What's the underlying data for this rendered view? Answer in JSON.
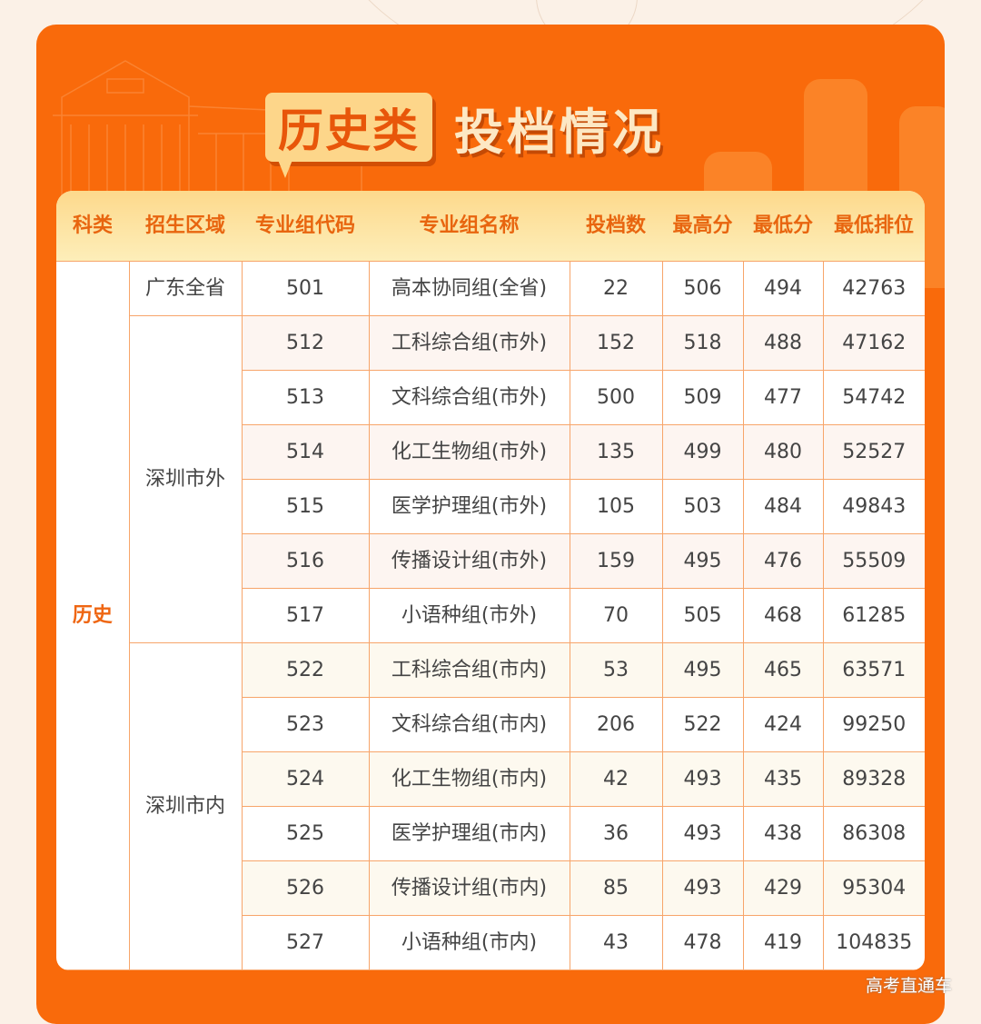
{
  "title": {
    "badge": "历史类",
    "main": "投档情况"
  },
  "headers": [
    "科类",
    "招生区域",
    "专业组代码",
    "专业组名称",
    "投档数",
    "最高分",
    "最低分",
    "最低排位"
  ],
  "category": "历史",
  "regions": [
    "广东全省",
    "深圳市外",
    "深圳市内"
  ],
  "rows": [
    [
      "501",
      "高本协同组(全省)",
      "22",
      "506",
      "494",
      "42763"
    ],
    [
      "512",
      "工科综合组(市外)",
      "152",
      "518",
      "488",
      "47162"
    ],
    [
      "513",
      "文科综合组(市外)",
      "500",
      "509",
      "477",
      "54742"
    ],
    [
      "514",
      "化工生物组(市外)",
      "135",
      "499",
      "480",
      "52527"
    ],
    [
      "515",
      "医学护理组(市外)",
      "105",
      "503",
      "484",
      "49843"
    ],
    [
      "516",
      "传播设计组(市外)",
      "159",
      "495",
      "476",
      "55509"
    ],
    [
      "517",
      "小语种组(市外)",
      "70",
      "505",
      "468",
      "61285"
    ],
    [
      "522",
      "工科综合组(市内)",
      "53",
      "495",
      "465",
      "63571"
    ],
    [
      "523",
      "文科综合组(市内)",
      "206",
      "522",
      "424",
      "99250"
    ],
    [
      "524",
      "化工生物组(市内)",
      "42",
      "493",
      "435",
      "89328"
    ],
    [
      "525",
      "医学护理组(市内)",
      "36",
      "493",
      "438",
      "86308"
    ],
    [
      "526",
      "传播设计组(市内)",
      "85",
      "493",
      "429",
      "95304"
    ],
    [
      "527",
      "小语种组(市内)",
      "43",
      "478",
      "419",
      "104835"
    ]
  ],
  "watermark": "高考直通车",
  "colors": {
    "accent": "#f96a0b",
    "header_bg": "#fdd98c",
    "header_text": "#e8650f"
  }
}
